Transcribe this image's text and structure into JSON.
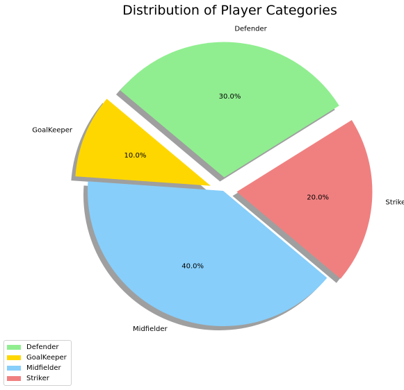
{
  "chart_data": {
    "type": "pie",
    "title": "Distribution of Player Categories",
    "start_angle_deg": 140,
    "shadow": true,
    "legend_placement": "lower-left",
    "slices": [
      {
        "label": "GoalKeeper",
        "value": 10.0,
        "pct_label": "10.0%",
        "color": "#FFD700",
        "explode": 0.1
      },
      {
        "label": "Midfielder",
        "value": 40.0,
        "pct_label": "40.0%",
        "color": "#87CEFA",
        "explode": 0.0
      },
      {
        "label": "Striker",
        "value": 20.0,
        "pct_label": "20.0%",
        "color": "#F08080",
        "explode": 0.1
      },
      {
        "label": "Defender",
        "value": 30.0,
        "pct_label": "30.0%",
        "color": "#90EE90",
        "explode": 0.1
      }
    ],
    "legend": [
      {
        "label": "Defender",
        "color": "#90EE90"
      },
      {
        "label": "GoalKeeper",
        "color": "#FFD700"
      },
      {
        "label": "Midfielder",
        "color": "#87CEFA"
      },
      {
        "label": "Striker",
        "color": "#F08080"
      }
    ]
  }
}
